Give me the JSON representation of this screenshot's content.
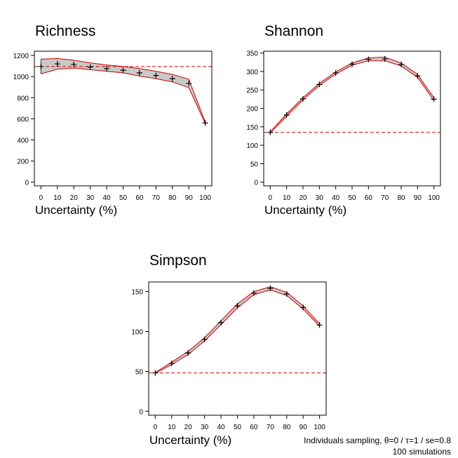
{
  "colors": {
    "band_fill": "#c9c9c9",
    "band_edge": "#cc0000",
    "reference_line": "#cc0000",
    "marker": "#000000",
    "axis": "#000000"
  },
  "chart_data": [
    {
      "type": "line",
      "title": "Richness",
      "xlabel": "Uncertainty (%)",
      "ylabel": "",
      "x": [
        0,
        10,
        20,
        30,
        40,
        50,
        60,
        70,
        80,
        90,
        100
      ],
      "xticks": [
        0,
        10,
        20,
        30,
        40,
        50,
        60,
        70,
        80,
        90,
        100
      ],
      "yticks": [
        0,
        200,
        400,
        600,
        800,
        1000,
        1200
      ],
      "xlim": [
        -4,
        104
      ],
      "ylim": [
        -35,
        1240
      ],
      "reference": 1095,
      "series": [
        {
          "role": "mean",
          "marker": "+",
          "values": [
            1095,
            1120,
            1115,
            1090,
            1075,
            1060,
            1035,
            1010,
            980,
            935,
            560
          ]
        },
        {
          "role": "lower",
          "values": [
            1025,
            1070,
            1080,
            1065,
            1050,
            1035,
            1005,
            980,
            950,
            895,
            555
          ]
        },
        {
          "role": "upper",
          "values": [
            1165,
            1170,
            1155,
            1130,
            1110,
            1095,
            1075,
            1050,
            1020,
            975,
            570
          ]
        }
      ],
      "grid": false,
      "legend": "none"
    },
    {
      "type": "line",
      "title": "Shannon",
      "xlabel": "Uncertainty (%)",
      "ylabel": "",
      "x": [
        0,
        10,
        20,
        30,
        40,
        50,
        60,
        70,
        80,
        90,
        100
      ],
      "xticks": [
        0,
        10,
        20,
        30,
        40,
        50,
        60,
        70,
        80,
        90,
        100
      ],
      "yticks": [
        0,
        50,
        100,
        150,
        200,
        250,
        300,
        350
      ],
      "xlim": [
        -4,
        104
      ],
      "ylim": [
        -10,
        355
      ],
      "reference": 135,
      "series": [
        {
          "role": "mean",
          "marker": "+",
          "values": [
            135,
            182,
            226,
            265,
            296,
            320,
            333,
            334,
            319,
            288,
            225
          ]
        },
        {
          "role": "lower",
          "values": [
            133,
            179,
            223,
            262,
            293,
            317,
            329,
            329,
            315,
            284,
            221
          ]
        },
        {
          "role": "upper",
          "values": [
            137,
            185,
            229,
            268,
            299,
            323,
            337,
            339,
            323,
            292,
            229
          ]
        }
      ],
      "grid": false,
      "legend": "none"
    },
    {
      "type": "line",
      "title": "Simpson",
      "xlabel": "Uncertainty (%)",
      "ylabel": "",
      "x": [
        0,
        10,
        20,
        30,
        40,
        50,
        60,
        70,
        80,
        90,
        100
      ],
      "xticks": [
        0,
        10,
        20,
        30,
        40,
        50,
        60,
        70,
        80,
        90,
        100
      ],
      "yticks": [
        0,
        50,
        100,
        150
      ],
      "xlim": [
        -4,
        104
      ],
      "ylim": [
        -5,
        162
      ],
      "reference": 48,
      "series": [
        {
          "role": "mean",
          "marker": "+",
          "values": [
            48,
            60,
            73,
            90,
            111,
            132,
            148,
            154,
            147,
            130,
            108
          ]
        },
        {
          "role": "lower",
          "values": [
            47.5,
            58.5,
            71,
            88,
            108.5,
            129.5,
            146,
            152,
            145,
            128,
            106.5
          ]
        },
        {
          "role": "upper",
          "values": [
            48.5,
            61.5,
            75,
            92,
            113.5,
            134.5,
            150,
            156,
            149,
            132,
            109.5
          ]
        }
      ],
      "grid": false,
      "legend": "none"
    }
  ],
  "footnote": {
    "line1": "Individuals sampling, θ=0 / τ=1 / se=0.8",
    "line2": "100  simulations"
  }
}
